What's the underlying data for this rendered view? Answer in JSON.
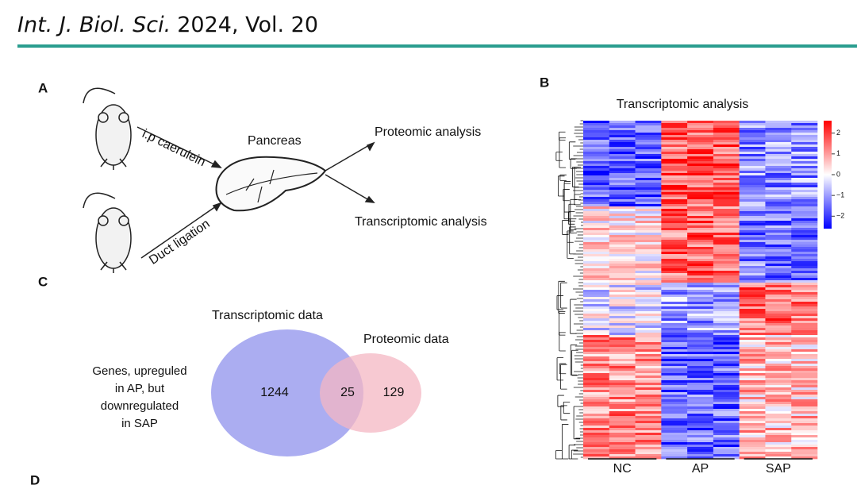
{
  "header": {
    "journal": "Int. J. Biol. Sci.",
    "volume": "2024, Vol. 20"
  },
  "panel_a": {
    "label": "A",
    "route_1": "i.p caerulein",
    "route_2": "Duct ligation",
    "organ": "Pancreas",
    "output_1": "Proteomic analysis",
    "output_2": "Transcriptomic analysis"
  },
  "panel_b": {
    "label": "B",
    "title": "Transcriptomic analysis",
    "groups": [
      "NC",
      "AP",
      "SAP"
    ],
    "colorbar": {
      "clim": [
        -2.6,
        2.6
      ],
      "ticks": [
        2,
        1,
        0,
        {
          "value": -1,
          "label": "−1"
        },
        {
          "value": -2,
          "label": "−2"
        }
      ]
    }
  },
  "panel_c": {
    "label": "C",
    "set_1": "Transcriptomic data",
    "set_2": "Proteomic data",
    "only_1": 1244,
    "both": 25,
    "only_2": 129,
    "note": [
      "Genes, upreguled",
      "in AP, but",
      "downregulated",
      "in SAP"
    ]
  },
  "panel_d": {
    "label": "D"
  }
}
